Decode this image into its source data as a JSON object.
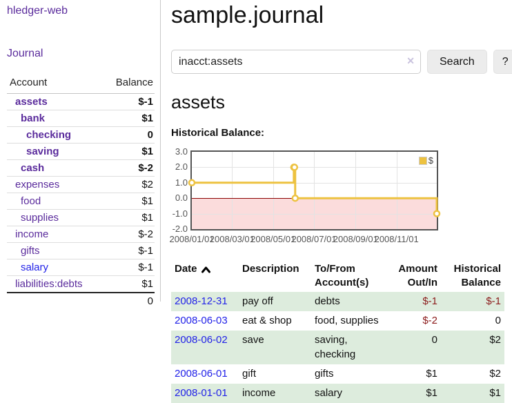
{
  "app_title": "hledger-web",
  "sidebar": {
    "journal_link": "Journal",
    "table": {
      "account_header": "Account",
      "balance_header": "Balance",
      "rows": [
        {
          "name": "assets",
          "depth": 1,
          "bold": true,
          "balance": "$-1",
          "bcls": "neg-strong"
        },
        {
          "name": "bank",
          "depth": 2,
          "bold": true,
          "balance": "$1",
          "bcls": ""
        },
        {
          "name": "checking",
          "depth": 3,
          "bold": true,
          "balance": "0",
          "bcls": ""
        },
        {
          "name": "saving",
          "depth": 3,
          "bold": true,
          "balance": "$1",
          "bcls": ""
        },
        {
          "name": "cash",
          "depth": 2,
          "bold": true,
          "balance": "$-2",
          "bcls": "neg-strong"
        },
        {
          "name": "expenses",
          "depth": 1,
          "bold": false,
          "balance": "$2",
          "bcls": ""
        },
        {
          "name": "food",
          "depth": 2,
          "bold": false,
          "balance": "$1",
          "bcls": ""
        },
        {
          "name": "supplies",
          "depth": 2,
          "bold": false,
          "balance": "$1",
          "bcls": ""
        },
        {
          "name": "income",
          "depth": 1,
          "bold": false,
          "balance": "$-2",
          "bcls": "neg-faded"
        },
        {
          "name": "gifts",
          "depth": 2,
          "bold": false,
          "balance": "$-1",
          "bcls": "neg-faded"
        },
        {
          "name": "salary",
          "depth": 2,
          "bold": false,
          "balance": "$-1",
          "bcls": "neg-faded",
          "link_blue": true
        },
        {
          "name": "liabilities:debts",
          "depth": 1,
          "bold": false,
          "balance": "$1",
          "bcls": ""
        }
      ],
      "total": "0"
    }
  },
  "main": {
    "title": "sample.journal",
    "search": {
      "value": "inacct:assets",
      "clear_icon": "✕",
      "search_button": "Search",
      "help_button": "?"
    },
    "account_heading": "assets",
    "chart_title": "Historical Balance:"
  },
  "chart_data": {
    "type": "line",
    "step": true,
    "title": "Historical Balance",
    "x_range": [
      "2008-01-01",
      "2008-12-31"
    ],
    "ylim": [
      -2.0,
      3.0
    ],
    "yticks": [
      {
        "v": 3,
        "label": "3.0"
      },
      {
        "v": 2,
        "label": "2.0"
      },
      {
        "v": 1,
        "label": "1.0"
      },
      {
        "v": 0,
        "label": "0.0"
      },
      {
        "v": -1,
        "label": "-1.0"
      },
      {
        "v": -2,
        "label": "-2.0"
      }
    ],
    "xticks": [
      {
        "d": "2008-01-01",
        "label": "2008/01/01"
      },
      {
        "d": "2008-03-01",
        "label": "2008/03/01"
      },
      {
        "d": "2008-05-01",
        "label": "2008/05/01"
      },
      {
        "d": "2008-07-01",
        "label": "2008/07/01"
      },
      {
        "d": "2008-09-01",
        "label": "2008/09/01"
      },
      {
        "d": "2008-11-01",
        "label": "2008/11/01"
      }
    ],
    "series": [
      {
        "name": "$",
        "color": "#edc240",
        "points": [
          {
            "d": "2008-01-01",
            "v": 1
          },
          {
            "d": "2008-06-01",
            "v": 2
          },
          {
            "d": "2008-06-02",
            "v": 2
          },
          {
            "d": "2008-06-03",
            "v": 0
          },
          {
            "d": "2008-12-31",
            "v": -1
          }
        ]
      }
    ],
    "legend_label": "$",
    "legend_position": "top-right",
    "grid": true,
    "negative_region_color": "#fbdcdc",
    "zero_line_color": "#8b0000"
  },
  "register": {
    "headers": {
      "date": "Date",
      "description": "Description",
      "accounts": "To/From Account(s)",
      "amount": "Amount Out/In",
      "balance": "Historical Balance"
    },
    "rows": [
      {
        "date": "2008-12-31",
        "description": "pay off",
        "accounts": "debts",
        "amount": "$-1",
        "amount_neg": true,
        "balance": "$-1",
        "balance_neg": true
      },
      {
        "date": "2008-06-03",
        "description": "eat & shop",
        "accounts": "food, supplies",
        "amount": "$-2",
        "amount_neg": true,
        "balance": "0",
        "balance_neg": false
      },
      {
        "date": "2008-06-02",
        "description": "save",
        "accounts": "saving, checking",
        "amount": "0",
        "amount_neg": false,
        "balance": "$2",
        "balance_neg": false
      },
      {
        "date": "2008-06-01",
        "description": "gift",
        "accounts": "gifts",
        "amount": "$1",
        "amount_neg": false,
        "balance": "$2",
        "balance_neg": false
      },
      {
        "date": "2008-01-01",
        "description": "income",
        "accounts": "salary",
        "amount": "$1",
        "amount_neg": false,
        "balance": "$1",
        "balance_neg": false
      }
    ]
  },
  "colors": {
    "link_purple": "#5a2b9c",
    "link_blue": "#2121e8",
    "negative_strong": "#8b1a1a",
    "negative_faded": "#c08080",
    "row_stripe_green": "#ddecdd",
    "chart_line_yellow": "#edc240"
  }
}
